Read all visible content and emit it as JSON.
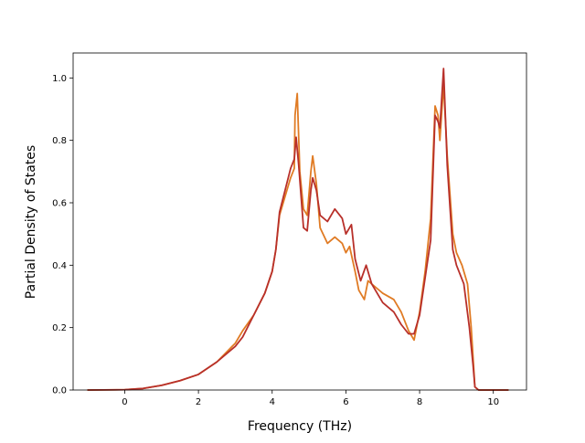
{
  "chart_data": {
    "type": "line",
    "title": "",
    "xlabel": "Frequency (THz)",
    "ylabel": "Partial Density of States",
    "xlim": [
      -1.4,
      10.9
    ],
    "ylim": [
      0.0,
      1.08
    ],
    "xticks": [
      0,
      2,
      4,
      6,
      8,
      10
    ],
    "yticks": [
      0.0,
      0.2,
      0.4,
      0.6,
      0.8,
      1.0
    ],
    "xtick_labels": [
      "0",
      "2",
      "4",
      "6",
      "8",
      "10"
    ],
    "ytick_labels": [
      "0.0",
      "0.2",
      "0.4",
      "0.6",
      "0.8",
      "1.0"
    ],
    "grid": false,
    "legend": "none",
    "series": [
      {
        "color": "#e07b24",
        "points": [
          [
            -1.0,
            0.0
          ],
          [
            0.0,
            0.001
          ],
          [
            0.5,
            0.005
          ],
          [
            1.0,
            0.015
          ],
          [
            1.5,
            0.03
          ],
          [
            2.0,
            0.05
          ],
          [
            2.5,
            0.09
          ],
          [
            3.0,
            0.15
          ],
          [
            3.2,
            0.19
          ],
          [
            3.5,
            0.24
          ],
          [
            3.8,
            0.31
          ],
          [
            4.0,
            0.38
          ],
          [
            4.1,
            0.45
          ],
          [
            4.2,
            0.56
          ],
          [
            4.35,
            0.62
          ],
          [
            4.5,
            0.68
          ],
          [
            4.6,
            0.71
          ],
          [
            4.62,
            0.88
          ],
          [
            4.68,
            0.95
          ],
          [
            4.75,
            0.7
          ],
          [
            4.85,
            0.58
          ],
          [
            4.95,
            0.56
          ],
          [
            5.05,
            0.7
          ],
          [
            5.1,
            0.75
          ],
          [
            5.2,
            0.66
          ],
          [
            5.3,
            0.52
          ],
          [
            5.5,
            0.47
          ],
          [
            5.7,
            0.49
          ],
          [
            5.9,
            0.47
          ],
          [
            6.0,
            0.44
          ],
          [
            6.1,
            0.46
          ],
          [
            6.25,
            0.38
          ],
          [
            6.35,
            0.32
          ],
          [
            6.5,
            0.29
          ],
          [
            6.6,
            0.35
          ],
          [
            6.8,
            0.33
          ],
          [
            7.0,
            0.31
          ],
          [
            7.3,
            0.29
          ],
          [
            7.5,
            0.25
          ],
          [
            7.7,
            0.19
          ],
          [
            7.85,
            0.16
          ],
          [
            8.0,
            0.25
          ],
          [
            8.15,
            0.38
          ],
          [
            8.3,
            0.55
          ],
          [
            8.42,
            0.91
          ],
          [
            8.5,
            0.88
          ],
          [
            8.55,
            0.8
          ],
          [
            8.65,
            0.98
          ],
          [
            8.75,
            0.75
          ],
          [
            8.9,
            0.5
          ],
          [
            9.0,
            0.44
          ],
          [
            9.15,
            0.4
          ],
          [
            9.3,
            0.34
          ],
          [
            9.4,
            0.2
          ],
          [
            9.5,
            0.01
          ],
          [
            9.6,
            0.0
          ],
          [
            10.4,
            0.0
          ]
        ]
      },
      {
        "color": "#b8302a",
        "points": [
          [
            -1.0,
            0.0
          ],
          [
            0.0,
            0.001
          ],
          [
            0.5,
            0.005
          ],
          [
            1.0,
            0.015
          ],
          [
            1.5,
            0.03
          ],
          [
            2.0,
            0.05
          ],
          [
            2.5,
            0.09
          ],
          [
            3.0,
            0.14
          ],
          [
            3.2,
            0.17
          ],
          [
            3.5,
            0.24
          ],
          [
            3.8,
            0.31
          ],
          [
            4.0,
            0.38
          ],
          [
            4.1,
            0.45
          ],
          [
            4.2,
            0.57
          ],
          [
            4.35,
            0.64
          ],
          [
            4.5,
            0.71
          ],
          [
            4.6,
            0.74
          ],
          [
            4.65,
            0.81
          ],
          [
            4.72,
            0.72
          ],
          [
            4.85,
            0.52
          ],
          [
            4.95,
            0.51
          ],
          [
            5.05,
            0.64
          ],
          [
            5.1,
            0.68
          ],
          [
            5.2,
            0.64
          ],
          [
            5.3,
            0.56
          ],
          [
            5.5,
            0.54
          ],
          [
            5.7,
            0.58
          ],
          [
            5.9,
            0.55
          ],
          [
            6.0,
            0.5
          ],
          [
            6.1,
            0.52
          ],
          [
            6.15,
            0.53
          ],
          [
            6.25,
            0.42
          ],
          [
            6.4,
            0.35
          ],
          [
            6.55,
            0.4
          ],
          [
            6.7,
            0.34
          ],
          [
            7.0,
            0.28
          ],
          [
            7.3,
            0.25
          ],
          [
            7.5,
            0.21
          ],
          [
            7.7,
            0.18
          ],
          [
            7.85,
            0.18
          ],
          [
            8.0,
            0.24
          ],
          [
            8.15,
            0.36
          ],
          [
            8.3,
            0.48
          ],
          [
            8.42,
            0.88
          ],
          [
            8.5,
            0.86
          ],
          [
            8.55,
            0.84
          ],
          [
            8.65,
            1.03
          ],
          [
            8.75,
            0.72
          ],
          [
            8.9,
            0.45
          ],
          [
            9.0,
            0.4
          ],
          [
            9.2,
            0.34
          ],
          [
            9.35,
            0.2
          ],
          [
            9.45,
            0.08
          ],
          [
            9.5,
            0.01
          ],
          [
            9.6,
            0.0
          ],
          [
            10.4,
            0.0
          ]
        ]
      }
    ]
  }
}
